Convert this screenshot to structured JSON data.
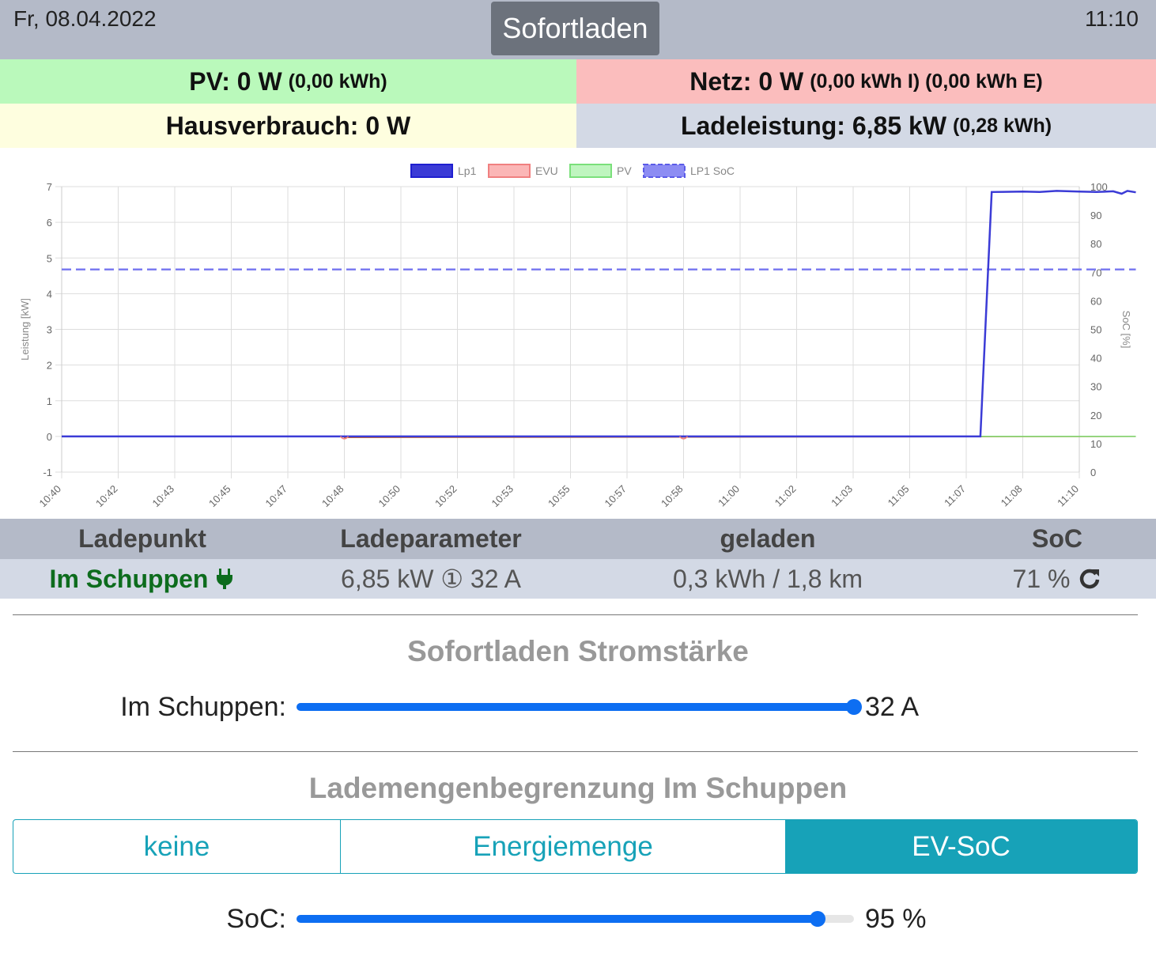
{
  "header": {
    "date": "Fr, 08.04.2022",
    "time": "11:10",
    "mode_label": "Sofortladen"
  },
  "stats": {
    "pv": {
      "label": "PV: 0 W",
      "sub": "(0,00 kWh)"
    },
    "netz": {
      "label": "Netz: 0 W",
      "sub": "(0,00 kWh I) (0,00 kWh E)"
    },
    "haus": {
      "label": "Hausverbrauch: 0 W"
    },
    "lade": {
      "label": "Ladeleistung: 6,85 kW",
      "sub": "(0,28 kWh)"
    }
  },
  "chart_data": {
    "type": "line",
    "legend": [
      "Lp1",
      "EVU",
      "PV",
      "LP1 SoC"
    ],
    "legend_position": "top",
    "ylabel": "Leistung [kW]",
    "y2label": "SoC [%]",
    "ylim": [
      -1,
      7
    ],
    "y2lim": [
      0,
      100
    ],
    "yticks": [
      "-1",
      "0",
      "1",
      "2",
      "3",
      "4",
      "5",
      "6",
      "7"
    ],
    "y2ticks": [
      "0",
      "10",
      "20",
      "30",
      "40",
      "50",
      "60",
      "70",
      "80",
      "90",
      "100"
    ],
    "xticks": [
      "10:40",
      "10:42",
      "10:43",
      "10:45",
      "10:47",
      "10:48",
      "10:50",
      "10:52",
      "10:53",
      "10:55",
      "10:57",
      "10:58",
      "11:00",
      "11:02",
      "11:03",
      "11:05",
      "11:07",
      "11:08",
      "11:10"
    ],
    "grid": true,
    "colors": {
      "lp1": "#3b3bd6",
      "evu": "#f08080",
      "pv": "#7be07b",
      "soc": "#7b7bf0",
      "evu_line": "#d2691e"
    },
    "series": [
      {
        "name": "Lp1",
        "axis": "left",
        "points": [
          [
            0,
            0
          ],
          [
            16.25,
            0
          ],
          [
            16.45,
            6.85
          ],
          [
            17,
            6.86
          ],
          [
            17.3,
            6.85
          ],
          [
            17.6,
            6.88
          ],
          [
            18,
            6.86
          ],
          [
            18.3,
            6.85
          ],
          [
            18.6,
            6.87
          ],
          [
            18.75,
            6.8
          ],
          [
            18.85,
            6.88
          ],
          [
            19,
            6.84
          ]
        ]
      },
      {
        "name": "EVU",
        "axis": "left",
        "points": [
          [
            0,
            0
          ],
          [
            5,
            0
          ],
          [
            5,
            -0.03
          ],
          [
            11,
            -0.02
          ],
          [
            19,
            0
          ]
        ]
      },
      {
        "name": "PV",
        "axis": "left",
        "points": [
          [
            0,
            0
          ],
          [
            19,
            0
          ]
        ]
      },
      {
        "name": "LP1 SoC",
        "axis": "right",
        "points": [
          [
            0,
            71
          ],
          [
            19,
            71
          ]
        ]
      }
    ]
  },
  "table": {
    "headers": [
      "Ladepunkt",
      "Ladeparameter",
      "geladen",
      "SoC"
    ],
    "row": {
      "name": "Im Schuppen",
      "params": "6,85 kW ① 32 A",
      "charged": "0,3 kWh / 1,8 km",
      "soc": "71 %"
    }
  },
  "sofortladen": {
    "title": "Sofortladen Stromstärke",
    "label": "Im Schuppen:",
    "value": "32 A",
    "fraction": 1.0
  },
  "lademenge": {
    "title": "Lademengenbegrenzung Im Schuppen",
    "options": [
      "keine",
      "Energiemenge",
      "EV-SoC"
    ],
    "selected": "EV-SoC",
    "soc_label": "SoC:",
    "soc_value": "95 %",
    "soc_fraction": 0.935
  }
}
